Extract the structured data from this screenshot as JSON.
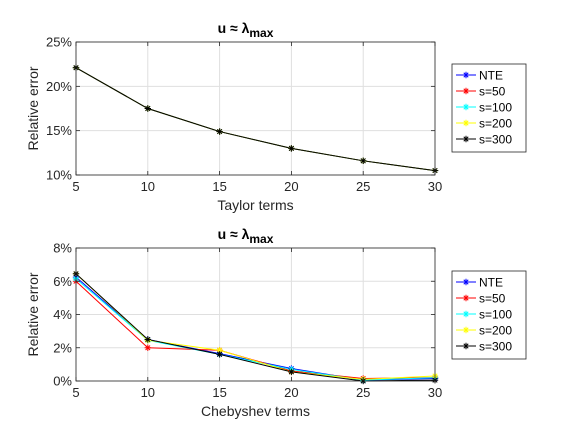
{
  "chart_data": [
    {
      "type": "line",
      "title": "u ≈ λ",
      "title_sub": "max",
      "xlabel": "Taylor terms",
      "ylabel": "Relative error",
      "x": [
        5,
        10,
        15,
        20,
        25,
        30
      ],
      "xticks": [
        5,
        10,
        15,
        20,
        25,
        30
      ],
      "ylim": [
        0.1,
        0.25
      ],
      "yticks": [
        0.1,
        0.15,
        0.2,
        0.25
      ],
      "ytick_labels": [
        "10%",
        "15%",
        "20%",
        "25%"
      ],
      "grid": true,
      "legend_position": "right",
      "series": [
        {
          "name": "NTE",
          "color": "#0000ff",
          "values": [
            0.221,
            0.175,
            0.149,
            0.13,
            0.116,
            0.105
          ]
        },
        {
          "name": "s=50",
          "color": "#ff0000",
          "values": [
            0.221,
            0.175,
            0.149,
            0.13,
            0.116,
            0.105
          ]
        },
        {
          "name": "s=100",
          "color": "#00ffff",
          "values": [
            0.221,
            0.175,
            0.149,
            0.13,
            0.116,
            0.105
          ]
        },
        {
          "name": "s=200",
          "color": "#ffff00",
          "values": [
            0.221,
            0.175,
            0.149,
            0.13,
            0.116,
            0.105
          ]
        },
        {
          "name": "s=300",
          "color": "#000000",
          "values": [
            0.221,
            0.175,
            0.149,
            0.13,
            0.116,
            0.105
          ]
        }
      ]
    },
    {
      "type": "line",
      "title": "u ≈ λ",
      "title_sub": "max",
      "xlabel": "Chebyshev terms",
      "ylabel": "Relative error",
      "x": [
        5,
        10,
        15,
        20,
        25,
        30
      ],
      "xticks": [
        5,
        10,
        15,
        20,
        25,
        30
      ],
      "ylim": [
        0.0,
        0.08
      ],
      "yticks": [
        0.0,
        0.02,
        0.04,
        0.06,
        0.08
      ],
      "ytick_labels": [
        "0%",
        "2%",
        "4%",
        "6%",
        "8%"
      ],
      "grid": true,
      "legend_position": "right",
      "series": [
        {
          "name": "NTE",
          "color": "#0000ff",
          "values": [
            0.0625,
            0.025,
            0.0165,
            0.0075,
            0.0005,
            0.0015
          ]
        },
        {
          "name": "s=50",
          "color": "#ff0000",
          "values": [
            0.06,
            0.02,
            0.0185,
            0.006,
            0.0015,
            0.002
          ]
        },
        {
          "name": "s=100",
          "color": "#00ffff",
          "values": [
            0.0615,
            0.0245,
            0.016,
            0.007,
            0.0005,
            0.002
          ]
        },
        {
          "name": "s=200",
          "color": "#ffff00",
          "values": [
            0.0645,
            0.0245,
            0.0185,
            0.0055,
            0.001,
            0.003
          ]
        },
        {
          "name": "s=300",
          "color": "#000000",
          "values": [
            0.0645,
            0.025,
            0.016,
            0.0055,
            0.0,
            0.0005
          ]
        }
      ]
    }
  ]
}
